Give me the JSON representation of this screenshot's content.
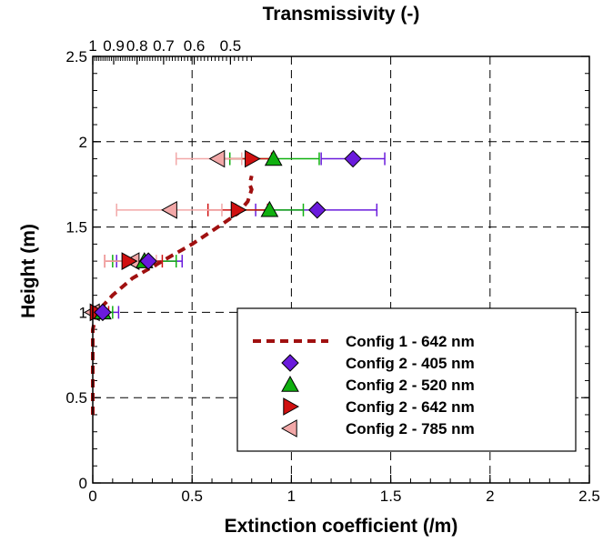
{
  "chart_data": {
    "type": "scatter",
    "xlabel": "Extinction coefficient (/m)",
    "ylabel": "Height (m)",
    "top_axis_label": "Transmissivity (-)",
    "xlim": [
      0,
      2.5
    ],
    "ylim": [
      0,
      2.5
    ],
    "x_ticks": [
      "0",
      "0.5",
      "1",
      "1.5",
      "2",
      "2.5"
    ],
    "y_ticks": [
      "0",
      "0.5",
      "1",
      "1.5",
      "2",
      "2.5"
    ],
    "top_ticks": [
      "1",
      "0.9",
      "0.8",
      "0.7",
      "0.6",
      "0.5"
    ],
    "grid": true,
    "legend_position": "bottom-right",
    "series": [
      {
        "name": "Config 1 - 642 nm",
        "kind": "line",
        "style": "dashed",
        "color": "#a01010",
        "points": [
          [
            0.0,
            0.4
          ],
          [
            0.0,
            0.9
          ],
          [
            0.02,
            1.0
          ],
          [
            0.1,
            1.1
          ],
          [
            0.2,
            1.2
          ],
          [
            0.35,
            1.3
          ],
          [
            0.5,
            1.4
          ],
          [
            0.63,
            1.5
          ],
          [
            0.73,
            1.58
          ],
          [
            0.78,
            1.65
          ],
          [
            0.8,
            1.72
          ],
          [
            0.79,
            1.75
          ],
          [
            0.8,
            1.8
          ]
        ]
      },
      {
        "name": "Config 2 - 405 nm",
        "kind": "marker",
        "marker": "diamond",
        "color": "#6a1bdc",
        "points": [
          {
            "x": 0.05,
            "y": 1.0,
            "xerr": [
              0.01,
              0.13
            ]
          },
          {
            "x": 0.28,
            "y": 1.3,
            "xerr": [
              0.12,
              0.45
            ]
          },
          {
            "x": 1.13,
            "y": 1.6,
            "xerr": [
              0.82,
              1.43
            ]
          },
          {
            "x": 1.31,
            "y": 1.9,
            "xerr": [
              1.15,
              1.47
            ]
          }
        ]
      },
      {
        "name": "Config 2 - 520 nm",
        "kind": "marker",
        "marker": "triangle-up",
        "color": "#10b010",
        "points": [
          {
            "x": 0.05,
            "y": 1.0,
            "xerr": [
              0.0,
              0.1
            ]
          },
          {
            "x": 0.26,
            "y": 1.3,
            "xerr": [
              0.1,
              0.42
            ]
          },
          {
            "x": 0.89,
            "y": 1.6,
            "xerr": [
              0.72,
              1.06
            ]
          },
          {
            "x": 0.91,
            "y": 1.9,
            "xerr": [
              0.69,
              1.14
            ]
          }
        ]
      },
      {
        "name": "Config 2 - 642 nm",
        "kind": "marker",
        "marker": "triangle-right",
        "color": "#d01010",
        "points": [
          {
            "x": 0.02,
            "y": 1.0,
            "xerr": [
              0.0,
              0.08
            ]
          },
          {
            "x": 0.18,
            "y": 1.3,
            "xerr": [
              0.06,
              0.35
            ]
          },
          {
            "x": 0.73,
            "y": 1.6,
            "xerr": [
              0.58,
              0.88
            ]
          },
          {
            "x": 0.8,
            "y": 1.9,
            "xerr": [
              0.66,
              0.9
            ]
          }
        ]
      },
      {
        "name": "Config 2 - 785 nm",
        "kind": "marker",
        "marker": "triangle-left",
        "color": "#f2a8a8",
        "points": [
          {
            "x": 0.0,
            "y": 1.0,
            "xerr": [
              0.0,
              0.05
            ]
          },
          {
            "x": 0.2,
            "y": 1.3,
            "xerr": [
              0.06,
              0.32
            ]
          },
          {
            "x": 0.39,
            "y": 1.6,
            "xerr": [
              0.12,
              0.65
            ]
          },
          {
            "x": 0.63,
            "y": 1.9,
            "xerr": [
              0.42,
              0.75
            ]
          }
        ]
      }
    ]
  }
}
